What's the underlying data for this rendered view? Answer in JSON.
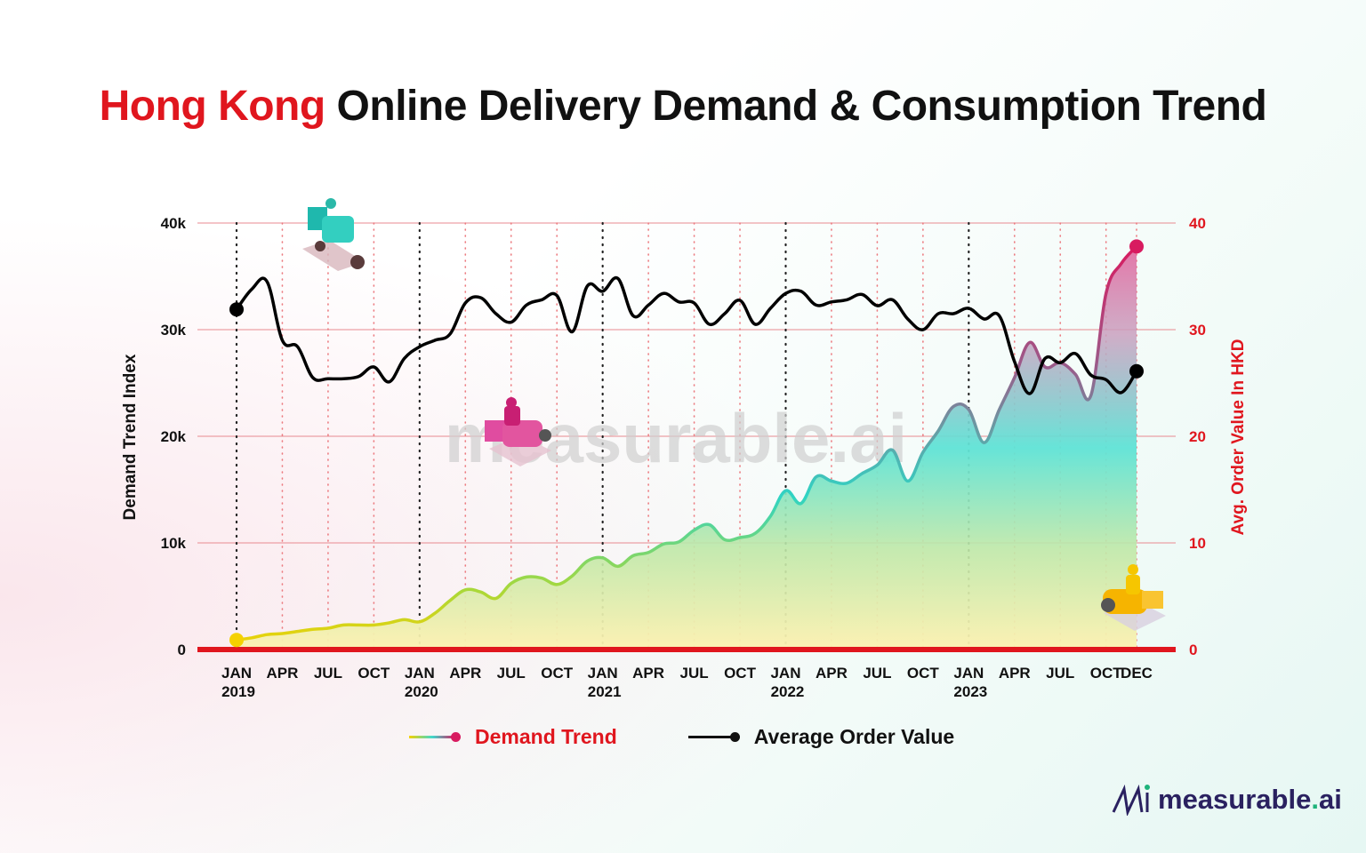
{
  "title": {
    "highlight": "Hong Kong",
    "rest": " Online Delivery Demand & Consumption Trend"
  },
  "watermark": "measurable.ai",
  "logo": {
    "mark": "M",
    "name": "measurable",
    "dot": ".",
    "suffix": "ai"
  },
  "legend": {
    "demand": "Demand Trend",
    "aov": "Average Order Value"
  },
  "colors": {
    "accent_red": "#e0161e",
    "demand_top": "#d81b60",
    "demand_mid": "#3fd9cc",
    "demand_bottom": "#f5d100",
    "aov": "#000000",
    "baseline": "#e0161e"
  },
  "chart_data": {
    "type": "line",
    "title": "Hong Kong Online Delivery Demand & Consumption Trend",
    "ylabel_left": "Demand Trend Index",
    "ylabel_right": "Avg. Order Value In HKD",
    "ylim_left": [
      0,
      40000
    ],
    "ylim_right": [
      0,
      40
    ],
    "yticks_left": [
      "0",
      "10k",
      "20k",
      "30k",
      "40k"
    ],
    "yticks_right": [
      "0",
      "10",
      "20",
      "30",
      "40"
    ],
    "grid": true,
    "legend_position": "bottom",
    "x_ticks": [
      {
        "month": "2019-01",
        "label": "JAN",
        "year": "2019"
      },
      {
        "month": "2019-04",
        "label": "APR"
      },
      {
        "month": "2019-07",
        "label": "JUL"
      },
      {
        "month": "2019-10",
        "label": "OCT"
      },
      {
        "month": "2020-01",
        "label": "JAN",
        "year": "2020"
      },
      {
        "month": "2020-04",
        "label": "APR"
      },
      {
        "month": "2020-07",
        "label": "JUL"
      },
      {
        "month": "2020-10",
        "label": "OCT"
      },
      {
        "month": "2021-01",
        "label": "JAN",
        "year": "2021"
      },
      {
        "month": "2021-04",
        "label": "APR"
      },
      {
        "month": "2021-07",
        "label": "JUL"
      },
      {
        "month": "2021-10",
        "label": "OCT"
      },
      {
        "month": "2022-01",
        "label": "JAN",
        "year": "2022"
      },
      {
        "month": "2022-04",
        "label": "APR"
      },
      {
        "month": "2022-07",
        "label": "JUL"
      },
      {
        "month": "2022-10",
        "label": "OCT"
      },
      {
        "month": "2023-01",
        "label": "JAN",
        "year": "2023"
      },
      {
        "month": "2023-04",
        "label": "APR"
      },
      {
        "month": "2023-07",
        "label": "JUL"
      },
      {
        "month": "2023-10",
        "label": "OCT"
      },
      {
        "month": "2023-12",
        "label": "DEC"
      }
    ],
    "x_start": "2019-01",
    "series": [
      {
        "name": "Demand Trend",
        "axis": "left",
        "unit": "k",
        "values": [
          0.9,
          1.1,
          1.4,
          1.5,
          1.7,
          1.9,
          2.0,
          2.3,
          2.3,
          2.3,
          2.5,
          2.8,
          2.6,
          3.4,
          4.6,
          5.6,
          5.4,
          4.8,
          6.2,
          6.8,
          6.7,
          6.1,
          6.9,
          8.3,
          8.6,
          7.8,
          8.8,
          9.1,
          9.9,
          10.1,
          11.2,
          11.7,
          10.3,
          10.5,
          10.9,
          12.5,
          14.9,
          13.7,
          16.2,
          15.8,
          15.6,
          16.5,
          17.3,
          18.7,
          15.8,
          18.5,
          20.5,
          22.8,
          22.5,
          19.4,
          22.5,
          25.5,
          28.8,
          26.5,
          26.9,
          25.8,
          23.8,
          33.4,
          36.2,
          37.8
        ]
      },
      {
        "name": "Average Order Value",
        "axis": "right",
        "unit": "HKD",
        "values": [
          31.9,
          33.8,
          34.5,
          29.0,
          28.4,
          25.5,
          25.4,
          25.4,
          25.6,
          26.5,
          25.1,
          27.3,
          28.4,
          29.0,
          29.6,
          32.5,
          33.0,
          31.5,
          30.7,
          32.3,
          32.8,
          33.2,
          29.8,
          34.1,
          33.6,
          34.8,
          31.3,
          32.3,
          33.4,
          32.6,
          32.5,
          30.5,
          31.5,
          32.75,
          30.5,
          32.0,
          33.4,
          33.6,
          32.3,
          32.6,
          32.8,
          33.3,
          32.25,
          32.8,
          31.0,
          30.0,
          31.5,
          31.5,
          32.0,
          31.0,
          31.3,
          27.0,
          24.0,
          27.3,
          26.9,
          27.75,
          25.75,
          25.3,
          24.1,
          26.1
        ]
      }
    ]
  }
}
